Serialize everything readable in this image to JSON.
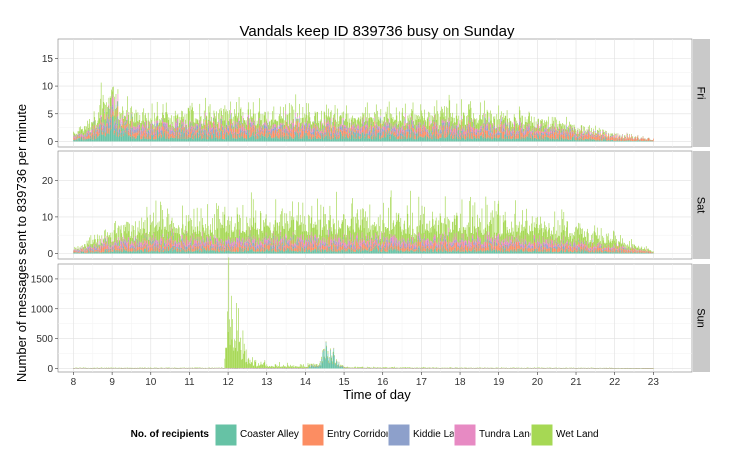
{
  "chart_data": {
    "type": "bar",
    "title": "Vandals keep ID 839736 busy on Sunday",
    "xlabel": "Time of day",
    "ylabel": "Number of messages sent to 839736 per minute",
    "x_ticks": [
      8,
      9,
      10,
      11,
      12,
      13,
      14,
      15,
      16,
      17,
      18,
      19,
      20,
      21,
      22,
      23
    ],
    "xlim": [
      7.6,
      24.0
    ],
    "stacked": true,
    "legend": {
      "title": "No. of recipients",
      "position": "bottom",
      "entries": [
        {
          "name": "Coaster Alley",
          "color": "#66c2a5"
        },
        {
          "name": "Entry Corridor",
          "color": "#fc8d62"
        },
        {
          "name": "Kiddie Land",
          "color": "#8da0cb"
        },
        {
          "name": "Tundra Land",
          "color": "#e78ac3"
        },
        {
          "name": "Wet Land",
          "color": "#a6d854"
        }
      ]
    },
    "panels": [
      {
        "strip": "Fri",
        "ylim": [
          -1,
          18.5
        ],
        "y_ticks": [
          0,
          5,
          10,
          15
        ],
        "series": [
          {
            "name": "Coaster Alley",
            "x": [
              8,
              8.5,
              8.75,
              9,
              9.5,
              10,
              11,
              12,
              13,
              14,
              15,
              16,
              17,
              18,
              19,
              20,
              21,
              22,
              23
            ],
            "values": [
              0.5,
              1,
              3,
              4,
              1.5,
              1.5,
              1.5,
              1.5,
              1.5,
              1.5,
              1.5,
              1.5,
              1.5,
              1.5,
              1.5,
              1.2,
              0.8,
              0.4,
              0.1
            ]
          },
          {
            "name": "Entry Corridor",
            "x": [
              8,
              8.5,
              8.75,
              9,
              9.5,
              10,
              11,
              12,
              13,
              14,
              15,
              16,
              17,
              18,
              19,
              20,
              21,
              22,
              23
            ],
            "values": [
              0.5,
              1,
              1.5,
              1.5,
              1.5,
              1.5,
              1.5,
              1.5,
              1.5,
              1.5,
              1.5,
              1.5,
              1.5,
              1.5,
              1.5,
              1.4,
              1.2,
              0.8,
              0.4
            ]
          },
          {
            "name": "Kiddie Land",
            "x": [
              8,
              8.5,
              8.75,
              9,
              9.5,
              10,
              11,
              12,
              13,
              14,
              15,
              16,
              17,
              18,
              19,
              20,
              21,
              22,
              23
            ],
            "values": [
              0.2,
              0.5,
              1,
              1,
              0.8,
              0.8,
              0.8,
              0.8,
              0.8,
              0.8,
              0.8,
              0.8,
              0.8,
              0.8,
              0.8,
              0.6,
              0.4,
              0.2,
              0
            ]
          },
          {
            "name": "Tundra Land",
            "x": [
              8,
              8.5,
              8.75,
              9,
              9.5,
              10,
              11,
              12,
              13,
              14,
              15,
              16,
              17,
              18,
              19,
              20,
              21,
              22,
              23
            ],
            "values": [
              0.3,
              0.5,
              1,
              1.5,
              0.8,
              0.8,
              0.8,
              0.8,
              0.8,
              0.8,
              0.8,
              0.8,
              0.8,
              0.8,
              0.8,
              0.6,
              0.4,
              0.2,
              0
            ]
          },
          {
            "name": "Wet Land",
            "x": [
              8,
              8.5,
              8.75,
              9,
              9.5,
              10,
              11,
              12,
              13,
              14,
              15,
              16,
              17,
              18,
              19,
              20,
              21,
              22,
              23
            ],
            "values": [
              0.5,
              2,
              4,
              3.5,
              2.5,
              2.5,
              2.5,
              2.5,
              2.5,
              2.5,
              2.5,
              2.5,
              2.8,
              3,
              2.8,
              2,
              1,
              0.3,
              0
            ]
          }
        ]
      },
      {
        "strip": "Sat",
        "ylim": [
          -1.5,
          28
        ],
        "y_ticks": [
          0,
          10,
          20
        ],
        "series": [
          {
            "name": "Coaster Alley",
            "x": [
              8,
              8.5,
              9,
              9.5,
              10,
              11,
              12,
              13,
              14,
              15,
              16,
              17,
              18,
              19,
              20,
              21,
              22,
              22.5,
              23
            ],
            "values": [
              0.3,
              0.8,
              1.2,
              1.5,
              1.5,
              1.5,
              1.5,
              1.5,
              1.5,
              1.5,
              1.5,
              1.5,
              1.5,
              1.5,
              1.4,
              1.2,
              0.8,
              0.5,
              0.2
            ]
          },
          {
            "name": "Entry Corridor",
            "x": [
              8,
              8.5,
              9,
              9.5,
              10,
              11,
              12,
              13,
              14,
              15,
              16,
              17,
              18,
              19,
              20,
              21,
              22,
              22.5,
              23
            ],
            "values": [
              0.4,
              1,
              1.5,
              2,
              2,
              2,
              2,
              2,
              2,
              2,
              2,
              2,
              2,
              2,
              2,
              1.6,
              1.2,
              0.8,
              0.3
            ]
          },
          {
            "name": "Kiddie Land",
            "x": [
              8,
              8.5,
              9,
              9.5,
              10,
              11,
              12,
              13,
              14,
              15,
              16,
              17,
              18,
              19,
              20,
              21,
              22,
              22.5,
              23
            ],
            "values": [
              0.2,
              0.6,
              0.8,
              1,
              1,
              1,
              1,
              1,
              1,
              1,
              1,
              1,
              1,
              1,
              0.9,
              0.7,
              0.4,
              0.2,
              0
            ]
          },
          {
            "name": "Tundra Land",
            "x": [
              8,
              8.5,
              9,
              9.5,
              10,
              11,
              12,
              13,
              14,
              15,
              16,
              17,
              18,
              19,
              20,
              21,
              22,
              22.5,
              23
            ],
            "values": [
              0.3,
              0.8,
              1.2,
              1.5,
              1.5,
              1.5,
              1.5,
              1.5,
              1.5,
              1.5,
              1.5,
              1.5,
              1.5,
              1.5,
              1.4,
              1.1,
              0.6,
              0.3,
              0
            ]
          },
          {
            "name": "Wet Land",
            "x": [
              8,
              8.5,
              9,
              9.5,
              10,
              11,
              12,
              13,
              14,
              15,
              16,
              17,
              18,
              19,
              20,
              21,
              22,
              22.5,
              23
            ],
            "values": [
              0.5,
              2,
              4,
              5,
              6,
              6.5,
              7,
              7.5,
              7.5,
              7.5,
              7.5,
              7.5,
              7.2,
              7,
              6.5,
              5,
              3,
              1.5,
              0.3
            ]
          }
        ]
      },
      {
        "strip": "Sun",
        "ylim": [
          -60,
          1750
        ],
        "y_ticks": [
          0,
          500,
          1000,
          1500
        ],
        "series": [
          {
            "name": "Coaster Alley",
            "x": [
              8,
              10,
              12,
              12.2,
              12.5,
              13,
              14,
              14.4,
              14.5,
              14.6,
              14.7,
              14.8,
              15,
              16,
              18,
              20,
              22,
              23
            ],
            "values": [
              3,
              3,
              5,
              5,
              5,
              5,
              5,
              100,
              420,
              340,
              300,
              160,
              8,
              4,
              4,
              4,
              3,
              1
            ]
          },
          {
            "name": "Entry Corridor",
            "x": [
              8,
              10,
              12,
              14,
              16,
              18,
              20,
              22,
              23
            ],
            "values": [
              2,
              2,
              2,
              2,
              2,
              2,
              2,
              2,
              1
            ]
          },
          {
            "name": "Kiddie Land",
            "x": [
              8,
              10,
              12,
              14,
              16,
              18,
              20,
              22,
              23
            ],
            "values": [
              1,
              1,
              1,
              1,
              1,
              1,
              1,
              1,
              0
            ]
          },
          {
            "name": "Tundra Land",
            "x": [
              8,
              10,
              12,
              14,
              16,
              18,
              20,
              22,
              23
            ],
            "values": [
              1,
              1,
              1,
              1,
              1,
              1,
              1,
              1,
              0
            ]
          },
          {
            "name": "Wet Land",
            "x": [
              8,
              11.9,
              12,
              12.05,
              12.1,
              12.2,
              12.3,
              12.4,
              12.5,
              12.7,
              13,
              13.5,
              14,
              14.5,
              15,
              16,
              18,
              20,
              22,
              23
            ],
            "values": [
              8,
              8,
              1700,
              1550,
              1300,
              950,
              650,
              420,
              250,
              120,
              80,
              60,
              50,
              40,
              25,
              15,
              10,
              8,
              5,
              2
            ]
          }
        ]
      }
    ]
  }
}
